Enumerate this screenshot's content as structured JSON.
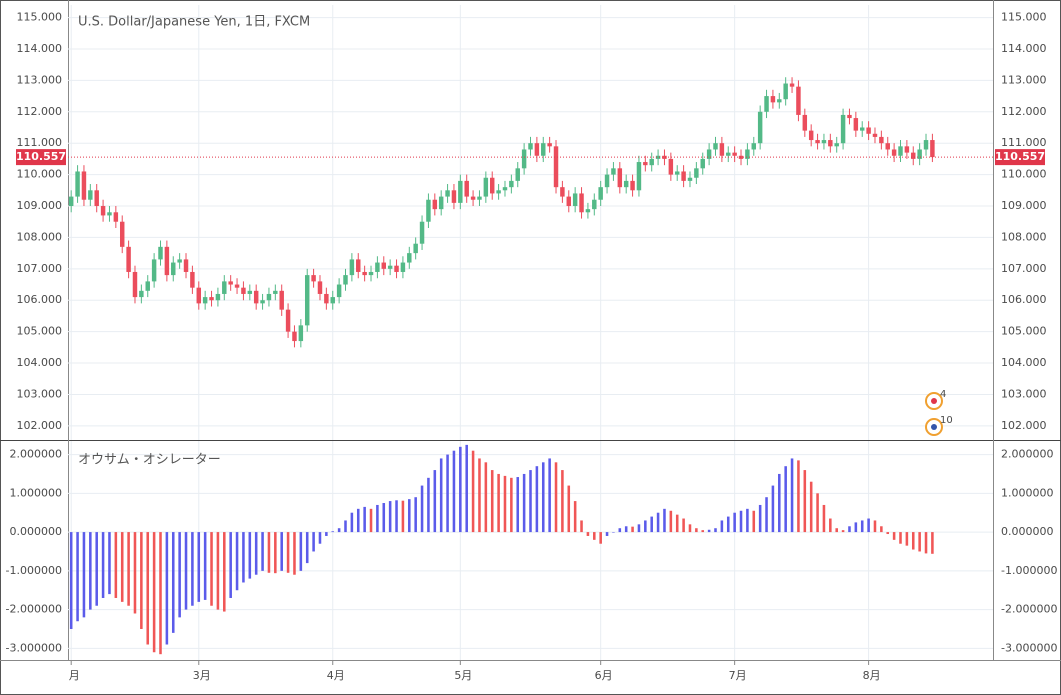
{
  "chart_data": [
    {
      "type": "candlestick",
      "title": "U.S. Dollar/Japanese Yen, 1日, FXCM",
      "up_color": "#53b987",
      "down_color": "#eb4d5c",
      "last_color": "#e0364a",
      "open": [
        109.0,
        109.3,
        110.1,
        109.2,
        109.5,
        109.0,
        108.7,
        108.8,
        108.5,
        107.7,
        106.9,
        106.1,
        106.3,
        106.6,
        107.3,
        107.7,
        106.8,
        107.2,
        107.3,
        106.9,
        106.4,
        105.9,
        106.1,
        106.0,
        106.2,
        106.6,
        106.5,
        106.4,
        106.2,
        106.3,
        105.9,
        106.0,
        106.2,
        106.3,
        105.7,
        105.0,
        104.7,
        105.2,
        106.8,
        106.6,
        106.2,
        105.9,
        106.1,
        106.5,
        106.8,
        107.3,
        106.9,
        106.8,
        106.9,
        107.2,
        107.0,
        107.1,
        106.9,
        107.2,
        107.5,
        107.8,
        108.5,
        109.2,
        108.9,
        109.3,
        109.5,
        109.1,
        109.8,
        109.3,
        109.2,
        109.3,
        109.9,
        109.4,
        109.5,
        109.6,
        109.8,
        110.2,
        110.8,
        111.0,
        110.6,
        111.0,
        110.9,
        109.6,
        109.3,
        109.0,
        109.4,
        108.8,
        108.9,
        109.2,
        109.6,
        110.0,
        110.2,
        109.6,
        109.8,
        109.5,
        110.4,
        110.3,
        110.5,
        110.6,
        110.5,
        110.0,
        110.1,
        109.8,
        109.9,
        110.2,
        110.5,
        110.8,
        111.0,
        110.6,
        110.7,
        110.6,
        110.5,
        110.8,
        111.0,
        112.0,
        112.5,
        112.3,
        112.4,
        112.9,
        112.8,
        111.9,
        111.4,
        111.1,
        111.0,
        111.1,
        110.9,
        111.0,
        111.9,
        111.8,
        111.4,
        111.5,
        111.3,
        111.2,
        111.0,
        110.8,
        110.6,
        110.9,
        110.7,
        110.5,
        110.8,
        111.1
      ],
      "high": [
        109.5,
        110.3,
        110.3,
        109.7,
        109.7,
        109.2,
        109.0,
        109.0,
        108.7,
        107.9,
        107.1,
        106.5,
        106.8,
        107.5,
        107.9,
        107.9,
        107.4,
        107.5,
        107.5,
        107.1,
        106.6,
        106.3,
        106.3,
        106.4,
        106.8,
        106.8,
        106.7,
        106.6,
        106.5,
        106.5,
        106.2,
        106.4,
        106.5,
        106.5,
        105.9,
        105.2,
        105.4,
        107.0,
        107.0,
        106.8,
        106.4,
        106.3,
        106.7,
        107.0,
        107.5,
        107.5,
        107.1,
        107.1,
        107.4,
        107.4,
        107.3,
        107.3,
        107.4,
        107.7,
        108.0,
        108.7,
        109.4,
        109.4,
        109.5,
        109.7,
        109.7,
        110.0,
        110.0,
        109.5,
        109.5,
        110.1,
        110.1,
        109.7,
        109.8,
        110.0,
        110.4,
        111.0,
        111.2,
        111.2,
        111.2,
        111.2,
        111.1,
        109.8,
        109.5,
        109.6,
        109.6,
        109.1,
        109.4,
        109.8,
        110.2,
        110.4,
        110.4,
        110.0,
        110.0,
        110.6,
        110.6,
        110.7,
        110.8,
        110.8,
        110.7,
        110.3,
        110.3,
        110.1,
        110.4,
        110.7,
        111.0,
        111.2,
        111.2,
        110.9,
        110.9,
        110.8,
        111.0,
        111.2,
        112.2,
        112.7,
        112.7,
        112.6,
        113.1,
        113.1,
        113.0,
        112.1,
        111.6,
        111.3,
        111.3,
        111.3,
        111.2,
        112.1,
        112.1,
        112.0,
        111.7,
        111.7,
        111.5,
        111.4,
        111.2,
        111.0,
        111.1,
        111.1,
        110.9,
        111.0,
        111.3,
        111.3
      ],
      "low": [
        108.8,
        109.1,
        109.0,
        109.0,
        108.8,
        108.5,
        108.5,
        108.3,
        107.5,
        106.7,
        105.9,
        105.9,
        106.1,
        106.4,
        107.1,
        106.6,
        106.6,
        107.0,
        106.7,
        106.2,
        105.7,
        105.7,
        105.8,
        105.8,
        106.0,
        106.3,
        106.2,
        106.0,
        106.0,
        105.7,
        105.7,
        105.8,
        106.0,
        105.5,
        104.8,
        104.5,
        104.5,
        105.0,
        106.4,
        106.0,
        105.7,
        105.7,
        105.9,
        106.3,
        106.6,
        106.7,
        106.6,
        106.6,
        106.7,
        106.8,
        106.8,
        106.7,
        106.7,
        107.0,
        107.3,
        107.6,
        108.3,
        108.7,
        108.7,
        109.1,
        108.9,
        108.9,
        109.1,
        109.0,
        109.0,
        109.1,
        109.2,
        109.2,
        109.3,
        109.4,
        109.6,
        110.0,
        110.6,
        110.4,
        110.4,
        110.7,
        109.4,
        109.1,
        108.8,
        108.8,
        108.6,
        108.6,
        108.7,
        109.0,
        109.4,
        109.8,
        109.4,
        109.4,
        109.3,
        109.3,
        110.1,
        110.1,
        110.3,
        110.3,
        109.8,
        109.8,
        109.6,
        109.6,
        109.7,
        110.0,
        110.3,
        110.6,
        110.4,
        110.4,
        110.4,
        110.3,
        110.3,
        110.6,
        110.8,
        111.8,
        112.1,
        112.1,
        112.2,
        112.6,
        111.7,
        111.2,
        110.9,
        110.8,
        110.8,
        110.7,
        110.7,
        110.8,
        111.6,
        111.2,
        111.2,
        111.1,
        111.0,
        110.8,
        110.6,
        110.4,
        110.4,
        110.5,
        110.3,
        110.3,
        110.6,
        110.4
      ],
      "close": [
        109.3,
        110.1,
        109.2,
        109.5,
        109.0,
        108.7,
        108.8,
        108.5,
        107.7,
        106.9,
        106.1,
        106.3,
        106.6,
        107.3,
        107.7,
        106.8,
        107.2,
        107.3,
        106.9,
        106.4,
        105.9,
        106.1,
        106.0,
        106.2,
        106.6,
        106.5,
        106.4,
        106.2,
        106.3,
        105.9,
        106.0,
        106.2,
        106.3,
        105.7,
        105.0,
        104.7,
        105.2,
        106.8,
        106.6,
        106.2,
        105.9,
        106.1,
        106.5,
        106.8,
        107.3,
        106.9,
        106.8,
        106.9,
        107.2,
        107.0,
        107.1,
        106.9,
        107.2,
        107.5,
        107.8,
        108.5,
        109.2,
        108.9,
        109.3,
        109.5,
        109.1,
        109.8,
        109.3,
        109.2,
        109.3,
        109.9,
        109.4,
        109.5,
        109.6,
        109.8,
        110.2,
        110.8,
        111.0,
        110.6,
        111.0,
        110.9,
        109.6,
        109.3,
        109.0,
        109.4,
        108.8,
        108.9,
        109.2,
        109.6,
        110.0,
        110.2,
        109.6,
        109.8,
        109.5,
        110.4,
        110.3,
        110.5,
        110.6,
        110.5,
        110.0,
        110.1,
        109.8,
        109.9,
        110.2,
        110.5,
        110.8,
        111.0,
        110.6,
        110.7,
        110.6,
        110.5,
        110.8,
        111.0,
        112.0,
        112.5,
        112.3,
        112.4,
        112.9,
        112.8,
        111.9,
        111.4,
        111.1,
        111.0,
        111.1,
        110.9,
        111.0,
        111.9,
        111.8,
        111.4,
        111.5,
        111.3,
        111.2,
        111.0,
        110.8,
        110.6,
        110.9,
        110.7,
        110.5,
        110.8,
        111.1,
        110.557
      ],
      "last_label": "110.557",
      "ylim": [
        101.55,
        115.4
      ],
      "yticks": [
        {
          "value": 102,
          "label": "102.000"
        },
        {
          "value": 103,
          "label": "103.000"
        },
        {
          "value": 104,
          "label": "104.000"
        },
        {
          "value": 105,
          "label": "105.000"
        },
        {
          "value": 106,
          "label": "106.000"
        },
        {
          "value": 107,
          "label": "107.000"
        },
        {
          "value": 108,
          "label": "108.000"
        },
        {
          "value": 109,
          "label": "109.000"
        },
        {
          "value": 110,
          "label": "110.000"
        },
        {
          "value": 111,
          "label": "111.000"
        },
        {
          "value": 112,
          "label": "112.000"
        },
        {
          "value": 113,
          "label": "113.000"
        },
        {
          "value": 114,
          "label": "114.000"
        },
        {
          "value": 115,
          "label": "115.000"
        }
      ],
      "xlim": [
        -0.5,
        144.5
      ],
      "xticks": [
        {
          "value": 0,
          "label": "月"
        },
        {
          "value": 20,
          "label": "3月"
        },
        {
          "value": 41,
          "label": "4月"
        },
        {
          "value": 61,
          "label": "5月"
        },
        {
          "value": 83,
          "label": "6月"
        },
        {
          "value": 104,
          "label": "7月"
        },
        {
          "value": 125,
          "label": "8月"
        }
      ],
      "events": [
        {
          "label": "4"
        },
        {
          "label": "10"
        }
      ],
      "grid": true
    },
    {
      "type": "histogram-oscillator",
      "title": "オウサム・オシレーター",
      "rising_color": "#5b5bea",
      "falling_color": "#f05656",
      "values": [
        -2.5,
        -2.3,
        -2.2,
        -2.0,
        -1.9,
        -1.7,
        -1.6,
        -1.7,
        -1.8,
        -1.9,
        -2.1,
        -2.5,
        -2.9,
        -3.1,
        -3.15,
        -2.9,
        -2.6,
        -2.2,
        -2.0,
        -1.9,
        -1.8,
        -1.75,
        -1.9,
        -2.0,
        -2.05,
        -1.7,
        -1.5,
        -1.3,
        -1.2,
        -1.1,
        -1.0,
        -1.05,
        -1.06,
        -1.0,
        -1.05,
        -1.1,
        -1.0,
        -0.8,
        -0.5,
        -0.3,
        -0.1,
        0.02,
        0.1,
        0.3,
        0.5,
        0.6,
        0.65,
        0.6,
        0.7,
        0.75,
        0.8,
        0.82,
        0.81,
        0.85,
        0.9,
        1.2,
        1.4,
        1.6,
        1.9,
        2.0,
        2.1,
        2.2,
        2.25,
        2.1,
        1.9,
        1.8,
        1.6,
        1.5,
        1.45,
        1.4,
        1.42,
        1.5,
        1.6,
        1.7,
        1.8,
        1.9,
        1.8,
        1.6,
        1.2,
        0.8,
        0.3,
        -0.1,
        -0.2,
        -0.3,
        -0.1,
        0.0,
        0.1,
        0.15,
        0.14,
        0.2,
        0.3,
        0.4,
        0.5,
        0.6,
        0.55,
        0.45,
        0.35,
        0.2,
        0.1,
        0.05,
        0.06,
        0.1,
        0.3,
        0.4,
        0.5,
        0.55,
        0.6,
        0.55,
        0.7,
        0.9,
        1.2,
        1.5,
        1.7,
        1.9,
        1.85,
        1.6,
        1.3,
        1.0,
        0.7,
        0.35,
        0.1,
        0.05,
        0.15,
        0.25,
        0.3,
        0.35,
        0.3,
        0.15,
        -0.05,
        -0.2,
        -0.3,
        -0.35,
        -0.45,
        -0.5,
        -0.55,
        -0.56
      ],
      "ylim": [
        -3.3,
        2.35
      ],
      "yticks": [
        {
          "value": -3,
          "label": "-3.000000"
        },
        {
          "value": -2,
          "label": "-2.000000"
        },
        {
          "value": -1,
          "label": "-1.000000"
        },
        {
          "value": 0,
          "label": "0.000000"
        },
        {
          "value": 1,
          "label": "1.000000"
        },
        {
          "value": 2,
          "label": "2.000000"
        }
      ],
      "grid": true
    }
  ]
}
